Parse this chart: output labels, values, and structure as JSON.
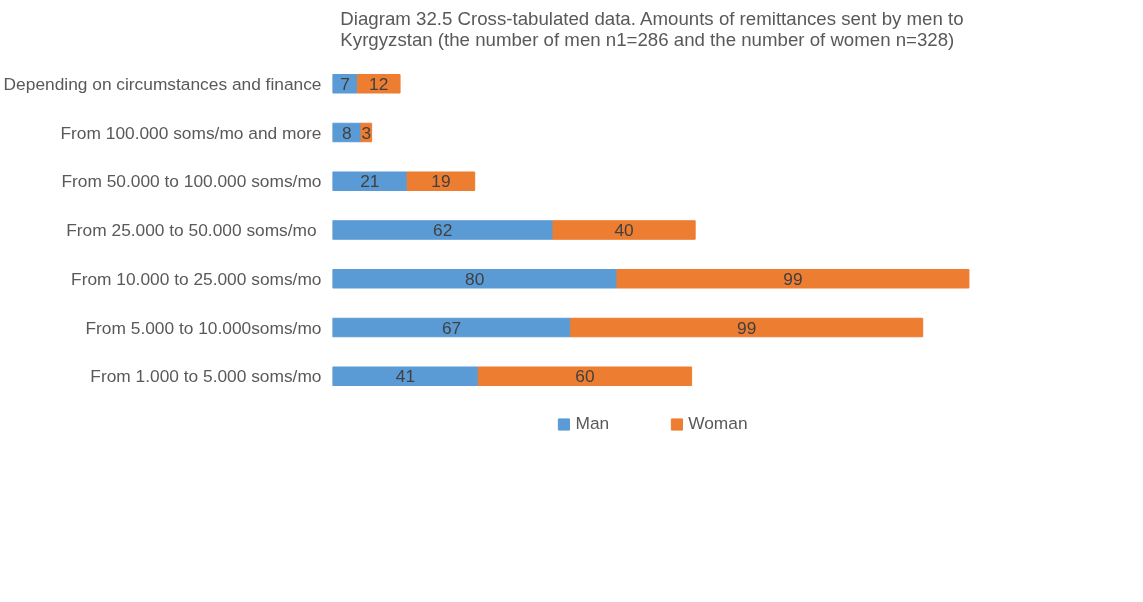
{
  "chart_data": {
    "type": "bar",
    "orientation": "horizontal",
    "stacked": true,
    "title": "Diagram 32.5 Cross-tabulated data. Amounts of remittances sent by men to Kyrgyzstan (the number of men n1=286 and the number of women n=328)",
    "categories": [
      "Depending on circumstances and finance",
      "From 100.000 soms/mo and more",
      "From 50.000 to 100.000 soms/mo",
      "From 25.000 to  50.000 soms/mo",
      "From 10.000 to 25.000 soms/mo",
      "From 5.000 to 10.000soms/mo",
      "From 1.000 to 5.000 soms/mo"
    ],
    "series": [
      {
        "name": "Man",
        "color": "#5b9bd5",
        "values": [
          7,
          8,
          21,
          62,
          80,
          67,
          41
        ]
      },
      {
        "name": "Woman",
        "color": "#ed7d31",
        "values": [
          12,
          3,
          19,
          40,
          99,
          99,
          60
        ]
      }
    ],
    "xlim": [
      0,
      180
    ],
    "tick_labels": "y",
    "data_labels": true,
    "legend": "bottom"
  }
}
